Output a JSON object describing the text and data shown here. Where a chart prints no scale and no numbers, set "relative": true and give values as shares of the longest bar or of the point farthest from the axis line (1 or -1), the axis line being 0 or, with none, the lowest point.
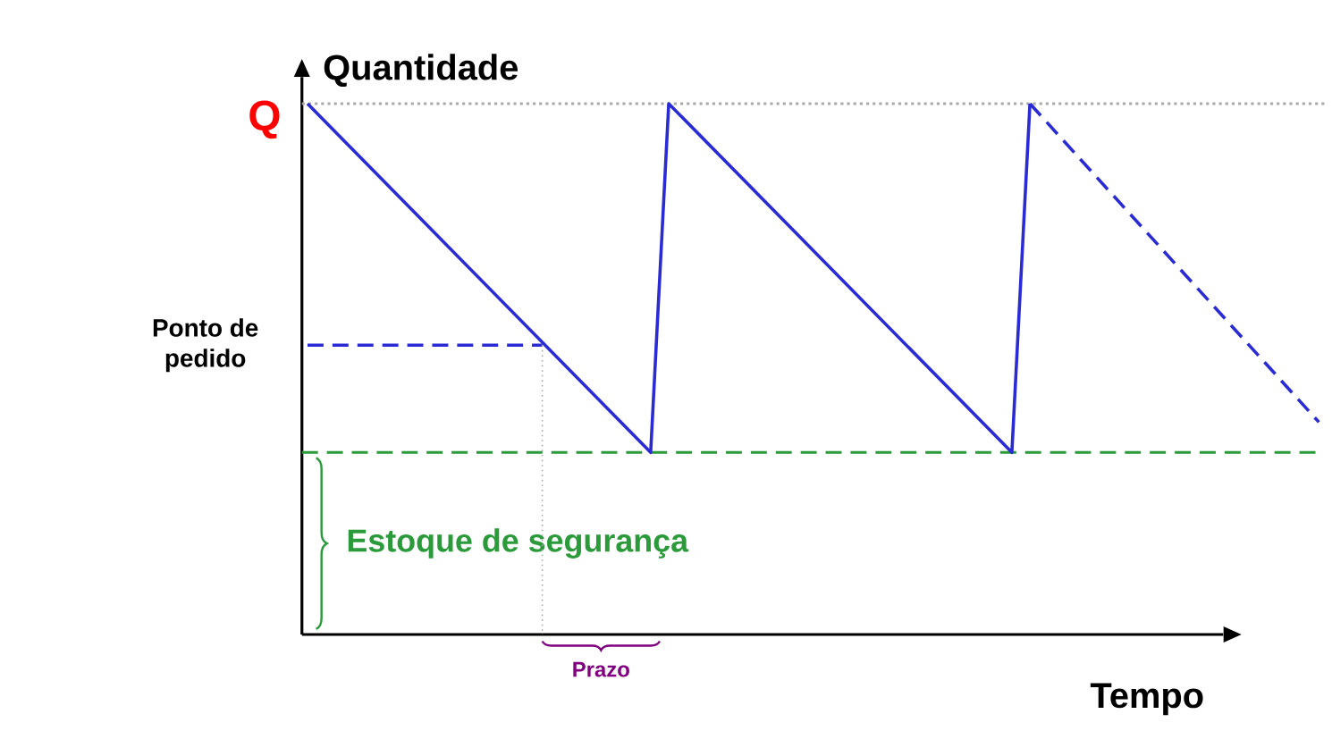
{
  "chart_data": {
    "type": "line",
    "relative": true,
    "ylabel": "Quantidade",
    "xlabel": "Tempo",
    "categories": [
      null,
      null,
      null,
      null,
      null,
      null,
      null,
      null,
      null,
      null,
      null,
      null,
      null,
      null,
      null,
      null,
      null,
      null,
      null,
      null,
      null,
      null,
      null,
      null,
      null,
      null,
      null,
      null,
      null,
      null,
      null,
      null,
      null,
      null,
      null,
      null,
      null,
      null,
      null,
      null,
      null,
      null,
      null,
      null,
      null,
      null,
      null,
      null,
      null,
      null,
      null,
      null,
      null,
      null,
      null,
      null,
      null
    ],
    "series": [
      {
        "values": [
          1,
          null,
          null,
          null,
          null,
          null,
          null,
          null,
          null,
          null,
          null,
          null,
          null,
          null,
          null,
          null,
          null,
          null,
          null,
          0.343,
          1,
          null,
          null,
          null,
          null,
          null,
          null,
          null,
          null,
          null,
          null,
          null,
          null,
          null,
          null,
          null,
          null,
          null,
          null,
          0.343,
          1,
          null,
          null,
          null,
          null,
          null,
          null,
          null,
          null,
          null,
          null,
          null,
          null,
          null,
          null,
          null,
          null
        ],
        "color": "#2b2bd6",
        "line_style": "solid"
      },
      {
        "values": [
          null,
          null,
          null,
          null,
          null,
          null,
          null,
          null,
          null,
          null,
          null,
          null,
          null,
          null,
          null,
          null,
          null,
          null,
          null,
          null,
          null,
          null,
          null,
          null,
          null,
          null,
          null,
          null,
          null,
          null,
          null,
          null,
          null,
          null,
          null,
          null,
          null,
          null,
          null,
          null,
          1,
          null,
          null,
          null,
          null,
          null,
          null,
          null,
          null,
          null,
          null,
          null,
          null,
          null,
          null,
          null,
          0.4
        ],
        "color": "#2b2bd6",
        "line_style": "dashed"
      },
      {
        "name": "Ponto de pedido",
        "values": [
          0.545,
          null,
          null,
          null,
          null,
          null,
          null,
          null,
          null,
          null,
          null,
          null,
          null,
          0.545,
          null,
          null,
          null,
          null,
          null,
          null,
          null,
          null,
          null,
          null,
          null,
          null,
          null,
          null,
          null,
          null,
          null,
          null,
          null,
          null,
          null,
          null,
          null,
          null,
          null,
          null,
          null,
          null,
          null,
          null,
          null,
          null,
          null,
          null,
          null,
          null,
          null,
          null,
          null,
          null,
          null,
          null,
          null
        ],
        "color": "#2b2bd6",
        "line_style": "dashed"
      }
    ],
    "ref_lines": [
      {
        "axis": "y",
        "value": 1,
        "label": "Q",
        "color": "#aaaaaa",
        "line_style": "dotted"
      },
      {
        "axis": "y",
        "value": 0.343,
        "label": "Estoque de segurança",
        "color": "#2a9a3a",
        "line_style": "dashed"
      }
    ],
    "annotations": [
      "Prazo"
    ]
  }
}
